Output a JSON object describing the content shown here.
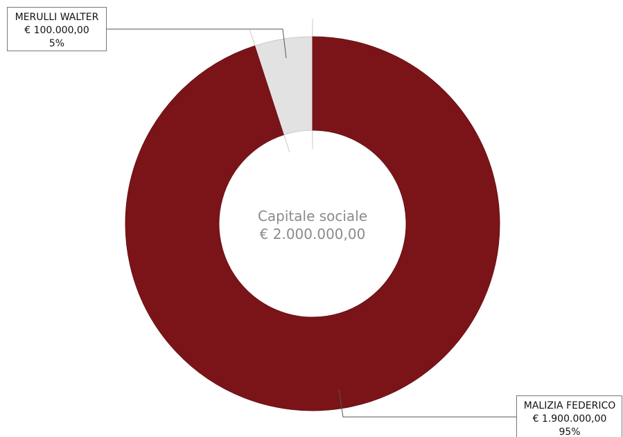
{
  "chart_data": {
    "type": "pie",
    "subtype": "donut",
    "center_label": {
      "line1": "Capitale sociale",
      "line2": "€ 2.000.000,00"
    },
    "slices": [
      {
        "label": "MERULLI WALTER",
        "value": 100000,
        "value_text": "€ 100.000,00",
        "percent_text": "5%",
        "color": "#e2e2e2"
      },
      {
        "label": "MALIZIA FEDERICO",
        "value": 1900000,
        "value_text": "€ 1.900.000,00",
        "percent_text": "95%",
        "color": "#7b1418"
      }
    ]
  }
}
